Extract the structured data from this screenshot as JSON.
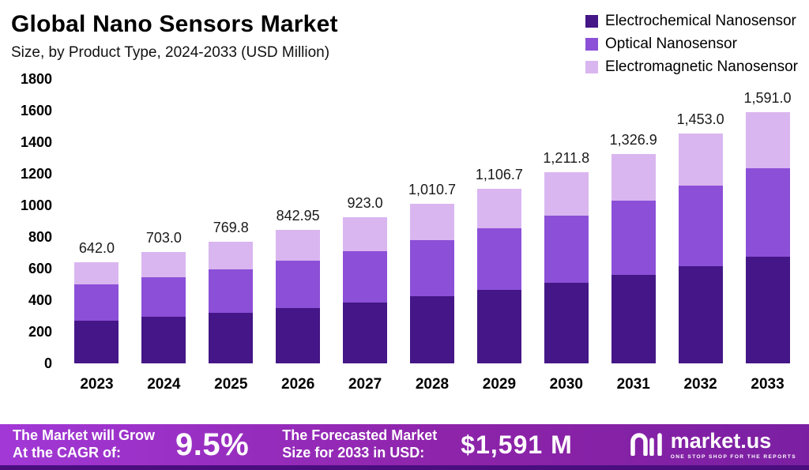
{
  "header": {
    "title": "Global Nano Sensors Market",
    "subtitle": "Size, by Product Type, 2024-2033 (USD Million)"
  },
  "chart_data": {
    "type": "bar",
    "stacked": true,
    "title": "Global Nano Sensors Market Size, by Product Type, 2024-2033 (USD Million)",
    "xlabel": "",
    "ylabel": "USD Million",
    "categories": [
      "2023",
      "2024",
      "2025",
      "2026",
      "2027",
      "2028",
      "2029",
      "2030",
      "2031",
      "2032",
      "2033"
    ],
    "series": [
      {
        "name": "Electrochemical Nanosensor",
        "color": "#441687",
        "values": [
          270,
          295,
          320,
          350,
          385,
          425,
          465,
          510,
          560,
          615,
          675
        ]
      },
      {
        "name": "Optical Nanosensor",
        "color": "#8c4fd8",
        "values": [
          230,
          250,
          275,
          300,
          325,
          355,
          390,
          425,
          470,
          510,
          560
        ]
      },
      {
        "name": "Electromagnetic Nanosensor",
        "color": "#d9b6f0",
        "values": [
          142,
          158,
          174.8,
          192.95,
          213,
          230.7,
          251.7,
          276.8,
          296.9,
          328,
          356
        ]
      }
    ],
    "totals": [
      642.0,
      703.0,
      769.8,
      842.95,
      923.0,
      1010.7,
      1106.7,
      1211.8,
      1326.9,
      1453.0,
      1591.0
    ],
    "total_labels": [
      "642.0",
      "703.0",
      "769.8",
      "842.95",
      "923.0",
      "1,010.7",
      "1,106.7",
      "1,211.8",
      "1,326.9",
      "1,453.0",
      "1,591.0"
    ],
    "ylim": [
      0,
      1800
    ],
    "yticks": [
      0,
      200,
      400,
      600,
      800,
      1000,
      1200,
      1400,
      1600,
      1800
    ],
    "grid": false,
    "legend_position": "top-right"
  },
  "footer": {
    "cagr_label": "The Market will Grow\nAt the CAGR of:",
    "cagr_value": "9.5%",
    "forecast_label": "The Forecasted Market\nSize for 2033 in USD:",
    "forecast_value": "$1,591 M",
    "brand_name": "market.us",
    "brand_tagline": "ONE STOP SHOP FOR THE REPORTS"
  }
}
